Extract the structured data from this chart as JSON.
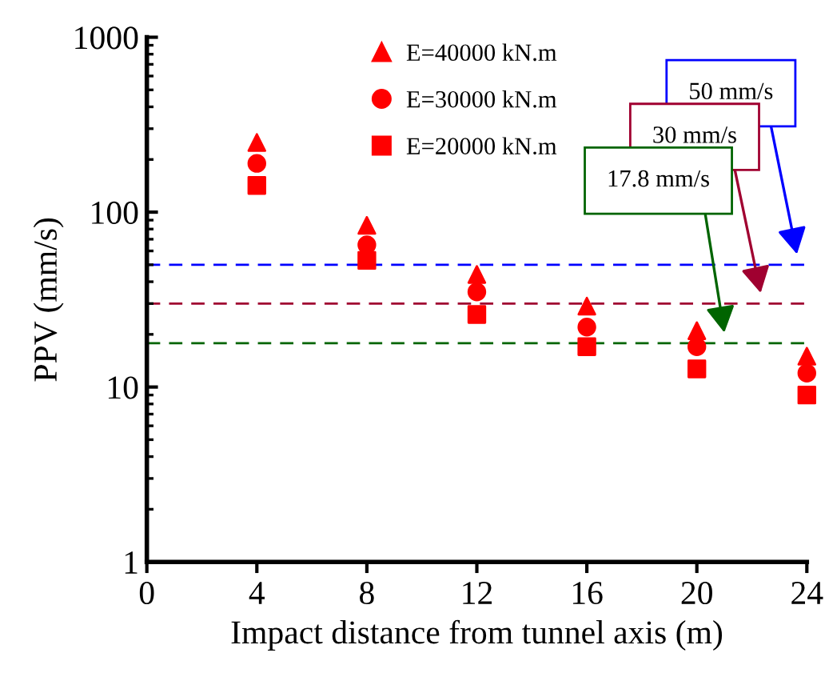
{
  "chart_data": {
    "type": "scatter",
    "xlabel": "Impact distance from tunnel axis (m)",
    "ylabel": "PPV (mm/s)",
    "x": [
      4,
      8,
      12,
      16,
      20,
      24
    ],
    "series": [
      {
        "name": "E=40000 kN.m",
        "color": "#ff0000",
        "marker": "triangle",
        "values": [
          250,
          84,
          44,
          29,
          21,
          15
        ]
      },
      {
        "name": "E=30000 kN.m",
        "color": "#ff0000",
        "marker": "circle",
        "values": [
          190,
          65,
          35,
          22,
          17,
          12
        ]
      },
      {
        "name": "E=20000 kN.m",
        "color": "#ff0000",
        "marker": "square",
        "values": [
          142,
          53,
          26,
          17,
          12.7,
          9
        ]
      }
    ],
    "log": "y",
    "xlim": [
      0,
      24
    ],
    "xticks": [
      0,
      4,
      8,
      12,
      16,
      20,
      24
    ],
    "ylim": [
      1,
      1000
    ],
    "yticks": [
      1,
      10,
      100,
      1000
    ],
    "grid": false,
    "legend": "top",
    "ref_lines": [
      {
        "axis": "y",
        "value": 50,
        "label": "50 mm/s",
        "color": "#0000ff",
        "line_style": "dashed"
      },
      {
        "axis": "y",
        "value": 30,
        "label": "30 mm/s",
        "color": "#a00030",
        "line_style": "dashed"
      },
      {
        "axis": "y",
        "value": 17.8,
        "label": "17.8 mm/s",
        "color": "#006400",
        "line_style": "dashed"
      }
    ]
  }
}
